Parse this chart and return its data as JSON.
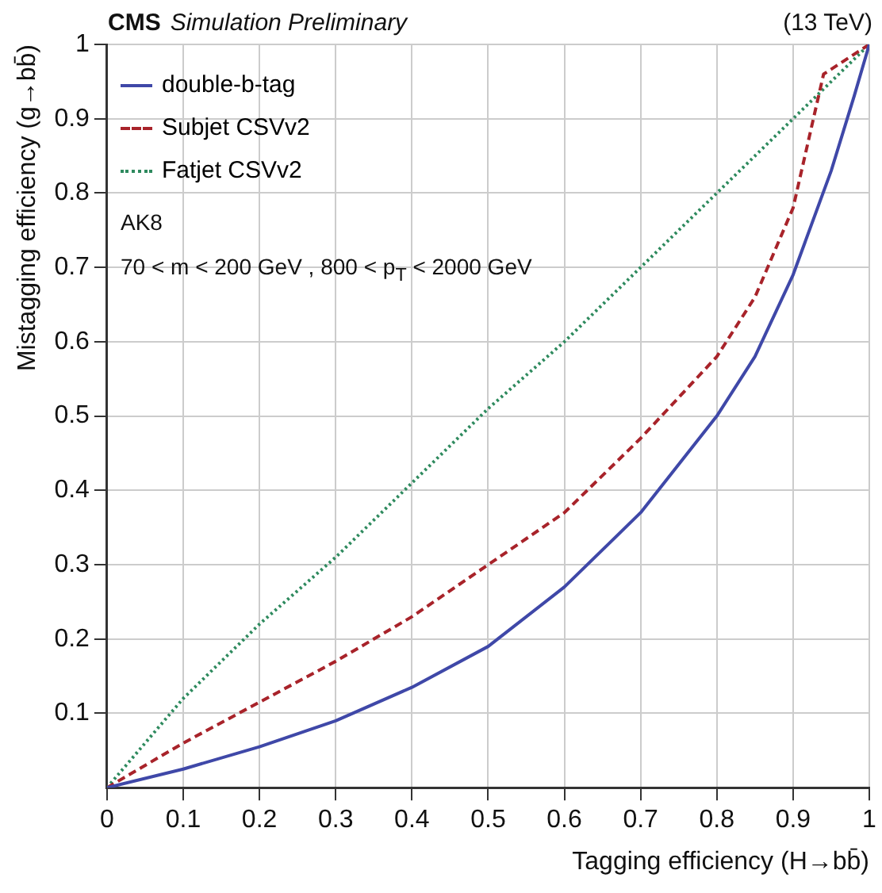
{
  "chart_data": {
    "type": "line",
    "title": "CMS",
    "subtitle": "Simulation Preliminary",
    "xlabel": "Tagging efficiency (H→bb̄)",
    "ylabel": "Mistagging efficiency (g→bb̄)",
    "annotations": [
      "(13 TeV)",
      "AK8",
      "70 < m < 200 GeV , 800 < p$_{T}$ < 2000 GeV"
    ],
    "xlim": [
      0,
      1
    ],
    "ylim": [
      0,
      1
    ],
    "xticks": [
      0,
      0.1,
      0.2,
      0.3,
      0.4,
      0.5,
      0.6,
      0.7,
      0.8,
      0.9,
      1
    ],
    "yticks": [
      0.1,
      0.2,
      0.3,
      0.4,
      0.5,
      0.6,
      0.7,
      0.8,
      0.9,
      1
    ],
    "grid": true,
    "legend": "top left",
    "marker": "none",
    "series": [
      {
        "name": "double-b-tag",
        "color": "#3f48a8",
        "line_style": "solid",
        "x": [
          0,
          0.1,
          0.2,
          0.3,
          0.4,
          0.5,
          0.6,
          0.7,
          0.8,
          0.85,
          0.9,
          0.95,
          0.98,
          1
        ],
        "values": [
          0,
          0.025,
          0.055,
          0.09,
          0.135,
          0.19,
          0.27,
          0.37,
          0.5,
          0.58,
          0.69,
          0.83,
          0.93,
          1
        ]
      },
      {
        "name": "Subjet CSVv2",
        "color": "#a8232a",
        "line_style": "dashed",
        "x": [
          0,
          0.1,
          0.2,
          0.3,
          0.4,
          0.5,
          0.6,
          0.7,
          0.8,
          0.85,
          0.9,
          0.94,
          1
        ],
        "values": [
          0,
          0.06,
          0.115,
          0.17,
          0.23,
          0.3,
          0.37,
          0.47,
          0.58,
          0.66,
          0.78,
          0.96,
          1
        ]
      },
      {
        "name": "Fatjet CSVv2",
        "color": "#2e8a5e",
        "line_style": "dotted",
        "x": [
          0,
          0.1,
          0.2,
          0.3,
          0.4,
          0.5,
          0.6,
          0.7,
          0.8,
          0.9,
          1
        ],
        "values": [
          0,
          0.12,
          0.22,
          0.31,
          0.41,
          0.51,
          0.6,
          0.7,
          0.8,
          0.9,
          1
        ]
      }
    ]
  }
}
